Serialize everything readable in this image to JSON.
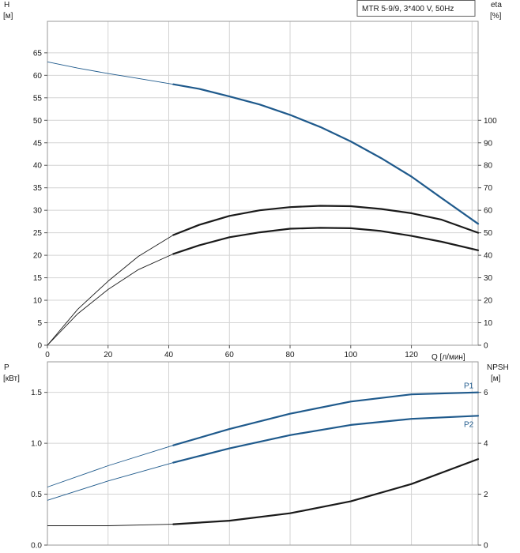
{
  "chart_data": {
    "legend": "MTR 5-9/9, 3*400 V, 50Hz",
    "x": {
      "label": "Q [л/мин]",
      "range": [
        0,
        142
      ],
      "ticks": [
        0,
        20,
        40,
        60,
        80,
        100,
        120
      ]
    },
    "top": {
      "type": "line",
      "left_axis": {
        "label": "H",
        "unit": "[м]",
        "range": [
          0,
          72
        ],
        "ticks": [
          0,
          5,
          10,
          15,
          20,
          25,
          30,
          35,
          40,
          45,
          50,
          55,
          60,
          65
        ]
      },
      "right_axis": {
        "label": "eta",
        "unit": "[%]",
        "range": [
          0,
          144
        ],
        "ticks": [
          0,
          10,
          20,
          30,
          40,
          50,
          60,
          70,
          80,
          90,
          100
        ]
      },
      "series": [
        {
          "name": "",
          "axis": "left",
          "color": "#1f5a8c",
          "x": [
            0,
            10,
            20,
            30,
            41.5,
            50,
            60,
            70,
            80,
            90,
            100,
            110,
            120,
            130,
            142
          ],
          "y": [
            63,
            61.6,
            60.4,
            59.3,
            58,
            57,
            55.3,
            53.5,
            51.2,
            48.5,
            45.3,
            41.6,
            37.5,
            32.7,
            27
          ]
        },
        {
          "name": "",
          "axis": "right",
          "color": "#1a1a1a",
          "x": [
            0,
            10,
            20,
            30,
            41.5,
            50,
            60,
            70,
            80,
            90,
            100,
            110,
            120,
            130,
            142
          ],
          "y": [
            0,
            16,
            28.5,
            39.5,
            49,
            53.5,
            57.5,
            60,
            61.4,
            62,
            61.8,
            60.6,
            58.7,
            55.8,
            50
          ]
        },
        {
          "name": "",
          "axis": "left",
          "color": "#1a1a1a",
          "x": [
            0,
            10,
            20,
            30,
            41.5,
            50,
            60,
            70,
            80,
            90,
            100,
            110,
            120,
            130,
            142
          ],
          "y": [
            0,
            7,
            12.4,
            16.8,
            20.3,
            22.2,
            24,
            25.1,
            25.9,
            26.1,
            26,
            25.4,
            24.3,
            23,
            21.1
          ]
        }
      ]
    },
    "bottom": {
      "type": "line",
      "left_axis": {
        "label": "P",
        "unit": "[кВт]",
        "range": [
          0,
          1.8
        ],
        "ticks": [
          "0.0",
          "0.5",
          "1.0",
          "1.5"
        ]
      },
      "right_axis": {
        "label": "NPSH",
        "unit": "[м]",
        "range": [
          0,
          7.2
        ],
        "ticks": [
          0,
          2,
          4,
          6
        ]
      },
      "series": [
        {
          "name": "P1",
          "axis": "left",
          "color": "#1f5a8c",
          "x": [
            0,
            20,
            41.5,
            60,
            80,
            100,
            120,
            142
          ],
          "y": [
            0.57,
            0.78,
            0.98,
            1.14,
            1.29,
            1.41,
            1.48,
            1.5
          ]
        },
        {
          "name": "P2",
          "axis": "left",
          "color": "#1f5a8c",
          "x": [
            0,
            20,
            41.5,
            60,
            80,
            100,
            120,
            142
          ],
          "y": [
            0.44,
            0.63,
            0.81,
            0.95,
            1.08,
            1.18,
            1.24,
            1.27
          ]
        },
        {
          "name": "",
          "axis": "right",
          "color": "#1a1a1a",
          "x": [
            0,
            20,
            41.5,
            60,
            80,
            100,
            120,
            142
          ],
          "y": [
            0.76,
            0.76,
            0.82,
            0.96,
            1.25,
            1.72,
            2.4,
            3.38
          ]
        }
      ]
    }
  }
}
